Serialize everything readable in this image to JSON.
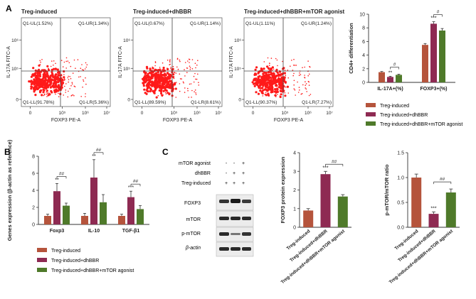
{
  "panel_letters": [
    "A",
    "B",
    "C"
  ],
  "colors": {
    "treg": "#b5543c",
    "dhbbr": "#8e2a52",
    "agonist": "#4f7a2a",
    "dot": "#ff1a1a",
    "axis": "#333333"
  },
  "legend_labels": [
    "Treg-induced",
    "Treg-induced+dhBBR",
    "Treg-induced+dhBBR+mTOR agonist"
  ],
  "chart_data": [
    {
      "id": "flow-cytometry",
      "type": "scatter",
      "xlabel": "FOXP3 PE-A",
      "ylabel": "IL-17A FITC-A",
      "x_ticks": [
        "0",
        "10⁵",
        "10⁶",
        "10⁷"
      ],
      "y_ticks": [
        "0",
        "10⁵",
        "10⁶"
      ],
      "plots": [
        {
          "title": "Treg-induced",
          "ul": "Q1-UL(1.52%)",
          "ur": "Q1-UR(1.34%)",
          "ll": "Q1-LL(91.78%)",
          "lr": "Q1-LR(5.36%)"
        },
        {
          "title": "Treg-induced+dhBBR",
          "ul": "Q1-UL(0.67%)",
          "ur": "Q1-UR(1.14%)",
          "ll": "Q1-LL(89.59%)",
          "lr": "Q1-LR(8.61%)"
        },
        {
          "title": "Treg-induced+dhBBR+mTOR agonist",
          "ul": "Q1-UL(1.11%)",
          "ur": "Q1-UR(1.24%)",
          "ll": "Q1-LL(90.37%)",
          "lr": "Q1-LR(7.27%)"
        }
      ]
    },
    {
      "id": "cd4-differentiation",
      "type": "bar",
      "ylabel": "CD4+ differentiation",
      "ylim": [
        0,
        10
      ],
      "yticks": [
        0,
        2,
        4,
        6,
        8,
        10
      ],
      "categories": [
        "IL-17A+(%)",
        "FOXP3+(%)"
      ],
      "series": [
        {
          "name": "Treg-induced",
          "values": [
            1.5,
            5.5
          ],
          "errors": [
            0.1,
            0.2
          ]
        },
        {
          "name": "Treg-induced+dhBBR",
          "values": [
            0.8,
            8.6
          ],
          "errors": [
            0.1,
            0.3
          ]
        },
        {
          "name": "Treg-induced+dhBBR+mTOR agonist",
          "values": [
            1.1,
            7.6
          ],
          "errors": [
            0.1,
            0.3
          ]
        }
      ],
      "annotations": {
        "sig_dhbbr": [
          "**",
          "***"
        ],
        "sig_agonist": [
          "#",
          "#"
        ]
      }
    },
    {
      "id": "gene-expression",
      "type": "bar",
      "ylabel": "Genes expression (β-actin as reference)",
      "ylim": [
        0,
        8
      ],
      "yticks": [
        0,
        2,
        4,
        6,
        8
      ],
      "categories": [
        "Foxp3",
        "IL-10",
        "TGF-β1"
      ],
      "series": [
        {
          "name": "Treg-induced",
          "values": [
            1.0,
            1.0,
            1.0
          ],
          "errors": [
            0.2,
            0.3,
            0.2
          ]
        },
        {
          "name": "Treg-induced+dhBBR",
          "values": [
            3.9,
            5.5,
            3.2
          ],
          "errors": [
            0.9,
            2.1,
            0.7
          ]
        },
        {
          "name": "Treg-induced+dhBBR+mTOR agonist",
          "values": [
            2.2,
            2.6,
            1.8
          ],
          "errors": [
            0.3,
            0.9,
            0.4
          ]
        }
      ],
      "annotations": {
        "sig_dhbbr": [
          "**",
          "**",
          "***"
        ],
        "sig_agonist": [
          "##",
          "##",
          "##"
        ]
      }
    },
    {
      "id": "foxp3-protein",
      "type": "bar",
      "ylabel": "FOXP3 protein expression",
      "ylim": [
        0,
        4
      ],
      "yticks": [
        0,
        1,
        2,
        3,
        4
      ],
      "categories": [
        "Treg-induced",
        "Treg-induced+dhBBR",
        "Treg-induced+dhBBR+mTOR agonist"
      ],
      "values": [
        0.9,
        2.85,
        1.65
      ],
      "errors": [
        0.1,
        0.15,
        0.1
      ],
      "annotations": {
        "sig_dhbbr": "***",
        "sig_agonist": "##"
      }
    },
    {
      "id": "p-mtor-ratio",
      "type": "bar",
      "ylabel": "p-mTOR/mTOR ratio",
      "ylim": [
        0,
        1.5
      ],
      "yticks": [
        "0.0",
        "0.5",
        "1.0",
        "1.5"
      ],
      "categories": [
        "Treg-induced",
        "Treg-induced+dhBBR",
        "Treg-induced+dhBBR+mTOR agonist"
      ],
      "values": [
        1.0,
        0.27,
        0.7
      ],
      "errors": [
        0.07,
        0.04,
        0.07
      ],
      "annotations": {
        "sig_dhbbr": "***",
        "sig_agonist": "##"
      }
    }
  ],
  "western_blot": {
    "conditions": [
      {
        "label": "mTOR agonist",
        "marks": [
          "-",
          "-",
          "+"
        ]
      },
      {
        "label": "dhBBR",
        "marks": [
          "-",
          "+",
          "+"
        ]
      },
      {
        "label": "Treg-induced",
        "marks": [
          "+",
          "+",
          "+"
        ]
      }
    ],
    "bands": [
      "FOXP3",
      "mTOR",
      "p-mTOR",
      "β-actin"
    ]
  }
}
